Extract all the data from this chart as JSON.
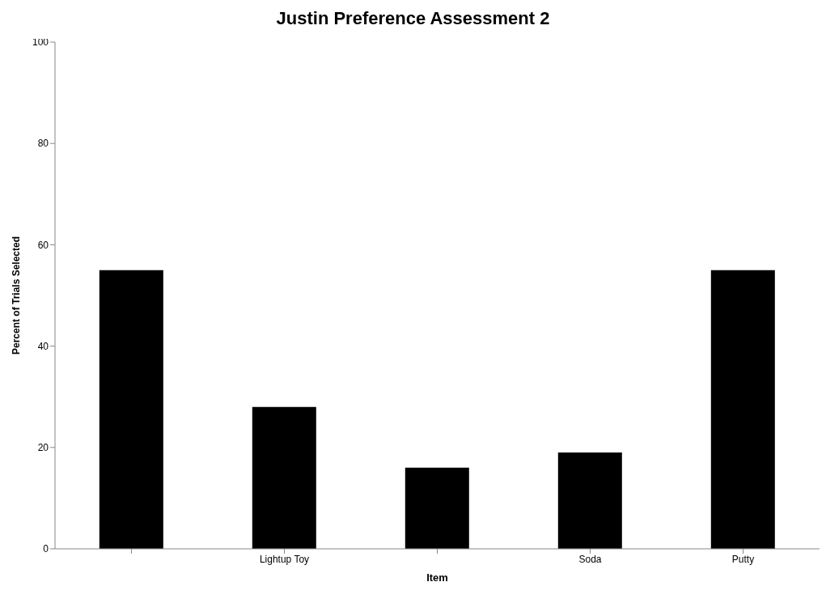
{
  "chart_data": {
    "type": "bar",
    "title": "Justin Preference Assessment 2",
    "xlabel": "Item",
    "ylabel": "Percent of Trials Selected",
    "categories": [
      null,
      "Lightup Toy",
      null,
      "Soda",
      "Putty"
    ],
    "values": [
      55,
      28,
      16,
      19,
      55
    ],
    "color": "#000000",
    "ylim": [
      0,
      100
    ],
    "yticks": [
      0,
      20,
      40,
      60,
      80,
      100
    ],
    "grid": false,
    "legend": false
  }
}
